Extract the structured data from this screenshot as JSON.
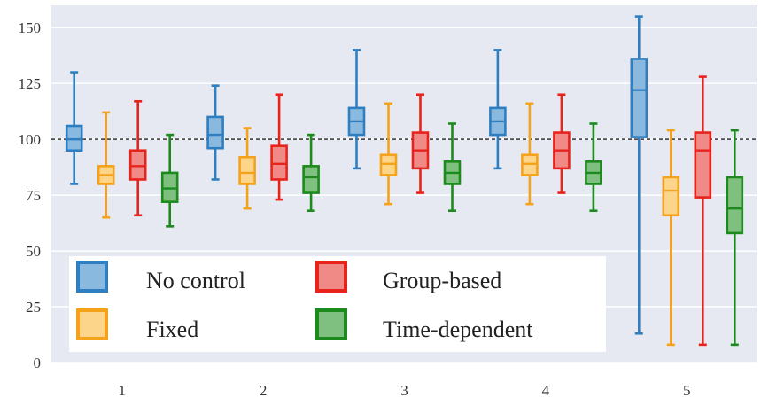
{
  "chart_data": {
    "type": "box",
    "title": "",
    "xlabel": "",
    "ylabel": "",
    "categories": [
      "1",
      "2",
      "3",
      "4",
      "5"
    ],
    "ylim": [
      0,
      160
    ],
    "yticks": [
      0,
      25,
      50,
      75,
      100,
      125,
      150
    ],
    "grid": true,
    "reference_line": {
      "y": 100,
      "style": "dashed",
      "color": "#333333"
    },
    "legend": {
      "placement": "bottom-left",
      "columns": 2
    },
    "colors": {
      "background": "#e6e9f2",
      "gridline": "#ffffff"
    },
    "series": [
      {
        "name": "No control",
        "stroke": "#2e7fc1",
        "fill": "#8ab9df",
        "boxes": [
          {
            "min": 80,
            "q1": 95,
            "median": 100,
            "q3": 106,
            "max": 130
          },
          {
            "min": 82,
            "q1": 96,
            "median": 102,
            "q3": 110,
            "max": 124
          },
          {
            "min": 87,
            "q1": 102,
            "median": 108,
            "q3": 114,
            "max": 140
          },
          {
            "min": 87,
            "q1": 102,
            "median": 108,
            "q3": 114,
            "max": 140
          },
          {
            "min": 13,
            "q1": 101,
            "median": 122,
            "q3": 136,
            "max": 155
          }
        ]
      },
      {
        "name": "Fixed",
        "stroke": "#f5a21b",
        "fill": "#fcd58a",
        "boxes": [
          {
            "min": 65,
            "q1": 80,
            "median": 84,
            "q3": 88,
            "max": 112
          },
          {
            "min": 69,
            "q1": 80,
            "median": 85,
            "q3": 92,
            "max": 105
          },
          {
            "min": 71,
            "q1": 84,
            "median": 89,
            "q3": 93,
            "max": 116
          },
          {
            "min": 71,
            "q1": 84,
            "median": 89,
            "q3": 93,
            "max": 116
          },
          {
            "min": 8,
            "q1": 66,
            "median": 77,
            "q3": 83,
            "max": 104
          }
        ]
      },
      {
        "name": "Group-based",
        "stroke": "#e8231c",
        "fill": "#f08a86",
        "boxes": [
          {
            "min": 66,
            "q1": 82,
            "median": 88,
            "q3": 95,
            "max": 117
          },
          {
            "min": 73,
            "q1": 82,
            "median": 89,
            "q3": 97,
            "max": 120
          },
          {
            "min": 76,
            "q1": 87,
            "median": 95,
            "q3": 103,
            "max": 120
          },
          {
            "min": 76,
            "q1": 87,
            "median": 95,
            "q3": 103,
            "max": 120
          },
          {
            "min": 8,
            "q1": 74,
            "median": 95,
            "q3": 103,
            "max": 128
          }
        ]
      },
      {
        "name": "Time-dependent",
        "stroke": "#1d8a1d",
        "fill": "#7fbf7f",
        "boxes": [
          {
            "min": 61,
            "q1": 72,
            "median": 78,
            "q3": 85,
            "max": 102
          },
          {
            "min": 68,
            "q1": 76,
            "median": 83,
            "q3": 88,
            "max": 102
          },
          {
            "min": 68,
            "q1": 80,
            "median": 85,
            "q3": 90,
            "max": 107
          },
          {
            "min": 68,
            "q1": 80,
            "median": 85,
            "q3": 90,
            "max": 107
          },
          {
            "min": 8,
            "q1": 58,
            "median": 69,
            "q3": 83,
            "max": 104
          }
        ]
      }
    ]
  }
}
